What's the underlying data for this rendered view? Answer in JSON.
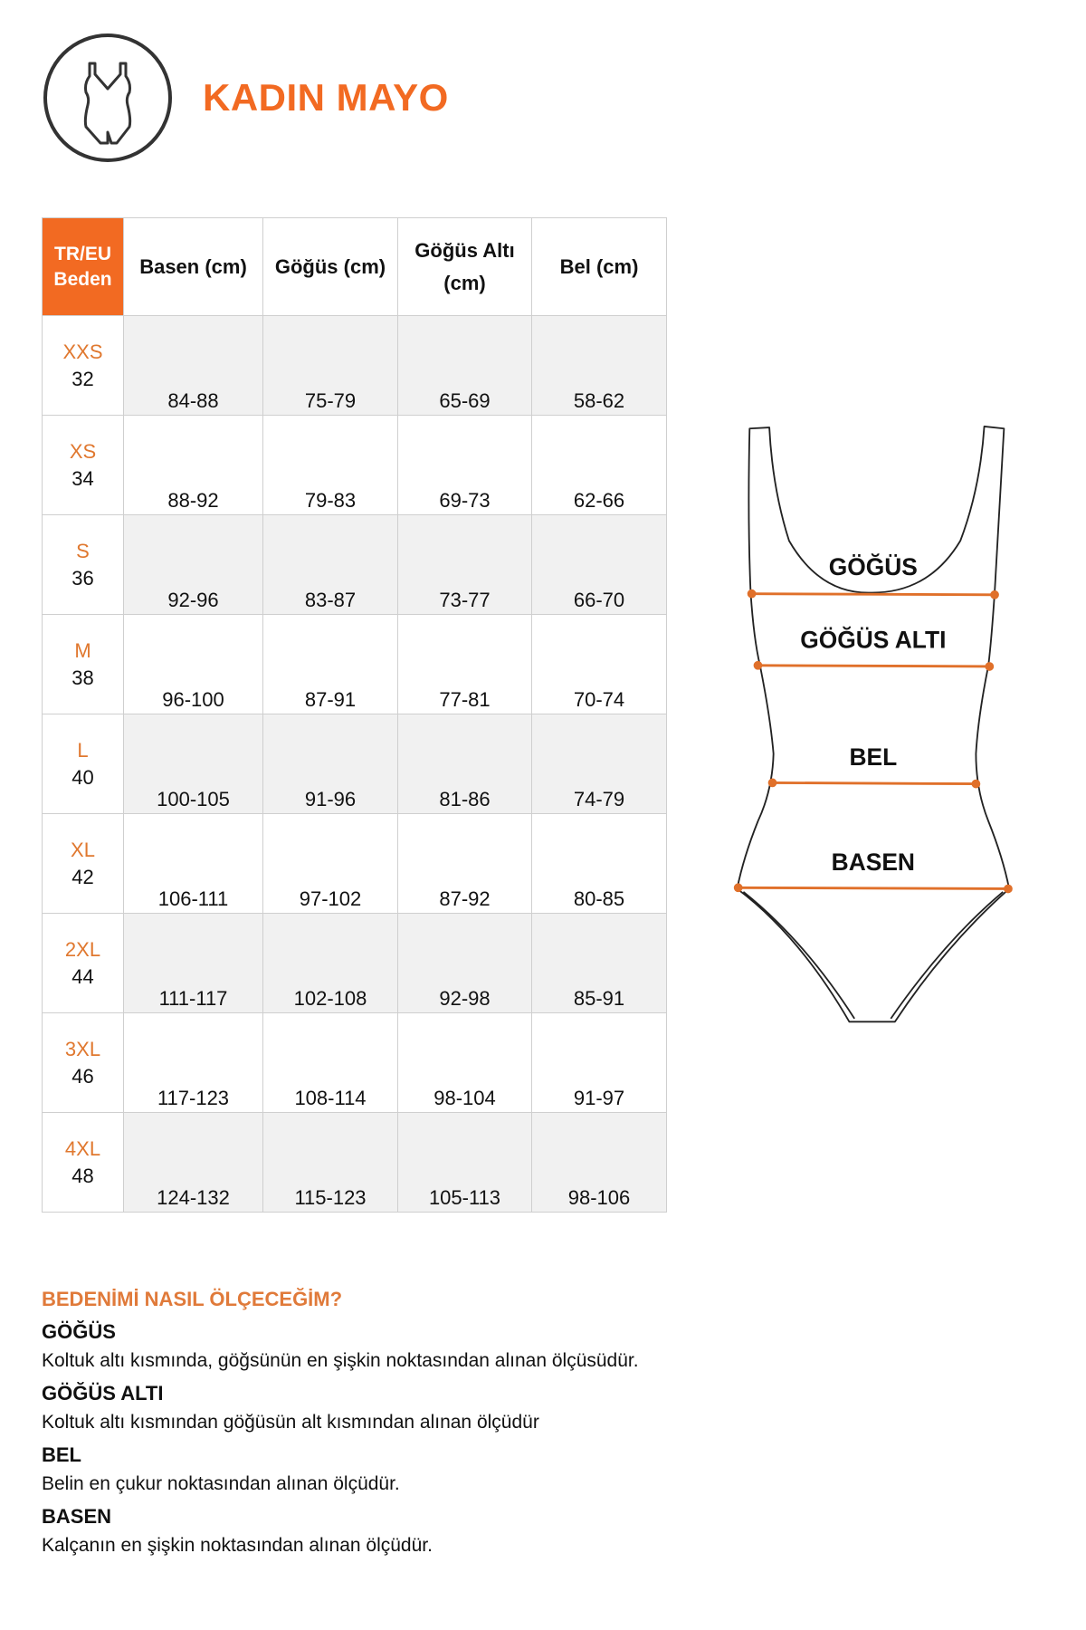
{
  "header": {
    "title": "KADIN MAYO",
    "icon": "swimsuit-icon"
  },
  "accent_color": "#f26a22",
  "table": {
    "columns": [
      "TR/EU Beden",
      "Basen (cm)",
      "Göğüs (cm)",
      "Göğüs Altı (cm)",
      "Bel (cm)"
    ],
    "rows": [
      {
        "size": "XXS",
        "eu": "32",
        "basen": "84-88",
        "gogus": "75-79",
        "gogus_alti": "65-69",
        "bel": "58-62"
      },
      {
        "size": "XS",
        "eu": "34",
        "basen": "88-92",
        "gogus": "79-83",
        "gogus_alti": "69-73",
        "bel": "62-66"
      },
      {
        "size": "S",
        "eu": "36",
        "basen": "92-96",
        "gogus": "83-87",
        "gogus_alti": "73-77",
        "bel": "66-70"
      },
      {
        "size": "M",
        "eu": "38",
        "basen": "96-100",
        "gogus": "87-91",
        "gogus_alti": "77-81",
        "bel": "70-74"
      },
      {
        "size": "L",
        "eu": "40",
        "basen": "100-105",
        "gogus": "91-96",
        "gogus_alti": "81-86",
        "bel": "74-79"
      },
      {
        "size": "XL",
        "eu": "42",
        "basen": "106-111",
        "gogus": "97-102",
        "gogus_alti": "87-92",
        "bel": "80-85"
      },
      {
        "size": "2XL",
        "eu": "44",
        "basen": "111-117",
        "gogus": "102-108",
        "gogus_alti": "92-98",
        "bel": "85-91"
      },
      {
        "size": "3XL",
        "eu": "46",
        "basen": "117-123",
        "gogus": "108-114",
        "gogus_alti": "98-104",
        "bel": "91-97"
      },
      {
        "size": "4XL",
        "eu": "48",
        "basen": "124-132",
        "gogus": "115-123",
        "gogus_alti": "105-113",
        "bel": "98-106"
      }
    ]
  },
  "diagram": {
    "labels": [
      "GÖĞÜS",
      "GÖĞÜS ALTI",
      "BEL",
      "BASEN"
    ]
  },
  "guide": {
    "heading": "BEDENİMİ NASIL ÖLÇECEĞİM?",
    "items": [
      {
        "title": "GÖĞÜS",
        "text": "Koltuk altı kısmında, göğsünün en şişkin noktasından alınan ölçüsüdür."
      },
      {
        "title": "GÖĞÜS ALTI",
        "text": "Koltuk altı kısmından göğüsün alt kısmından alınan ölçüdür"
      },
      {
        "title": "BEL",
        "text": "Belin en çukur noktasından alınan ölçüdür."
      },
      {
        "title": "BASEN",
        "text": "Kalçanın en şişkin noktasından alınan ölçüdür."
      }
    ]
  }
}
